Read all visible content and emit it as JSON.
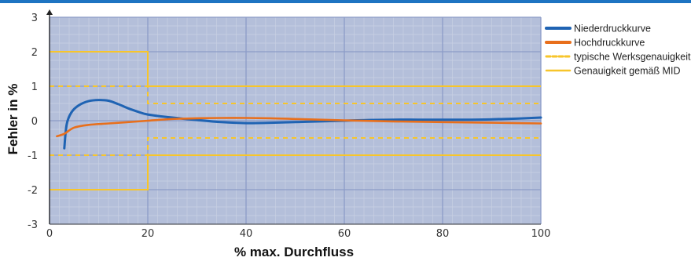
{
  "chart_data": {
    "type": "line",
    "xlabel": "% max. Durchfluss",
    "ylabel": "Fehler in %",
    "xlim": [
      0,
      100
    ],
    "ylim": [
      -3,
      3
    ],
    "x_ticks": [
      0,
      20,
      40,
      60,
      80,
      100
    ],
    "y_ticks": [
      3,
      2,
      1,
      0,
      -1,
      -2,
      -3
    ],
    "grid": true,
    "minor_grid": true,
    "legend_placement": "right",
    "colors": {
      "plot_background": "#b4bfda",
      "grid_major": "#8c9cc8",
      "grid_minor": "#c9d0e3",
      "niederdruck": "#1f63b3",
      "hochdruck": "#e86f1c",
      "werks": "#f7c52b",
      "mid": "#f7c52b"
    },
    "series": [
      {
        "name": "Niederdruckkurve",
        "style": "solid",
        "points": [
          [
            3,
            -0.8
          ],
          [
            3.5,
            -0.1
          ],
          [
            4.5,
            0.25
          ],
          [
            6,
            0.45
          ],
          [
            8,
            0.57
          ],
          [
            10,
            0.6
          ],
          [
            12,
            0.58
          ],
          [
            14,
            0.48
          ],
          [
            16,
            0.36
          ],
          [
            18,
            0.26
          ],
          [
            20,
            0.18
          ],
          [
            25,
            0.09
          ],
          [
            30,
            0.02
          ],
          [
            35,
            -0.04
          ],
          [
            40,
            -0.07
          ],
          [
            45,
            -0.06
          ],
          [
            50,
            -0.04
          ],
          [
            55,
            -0.02
          ],
          [
            60,
            0.0
          ],
          [
            65,
            0.02
          ],
          [
            70,
            0.03
          ],
          [
            75,
            0.03
          ],
          [
            80,
            0.03
          ],
          [
            85,
            0.03
          ],
          [
            90,
            0.04
          ],
          [
            95,
            0.06
          ],
          [
            100,
            0.09
          ]
        ]
      },
      {
        "name": "Hochdruckkurve",
        "style": "solid",
        "points": [
          [
            1.5,
            -0.45
          ],
          [
            3,
            -0.38
          ],
          [
            5,
            -0.2
          ],
          [
            8,
            -0.12
          ],
          [
            12,
            -0.08
          ],
          [
            16,
            -0.04
          ],
          [
            20,
            0.0
          ],
          [
            25,
            0.05
          ],
          [
            30,
            0.07
          ],
          [
            35,
            0.08
          ],
          [
            40,
            0.08
          ],
          [
            45,
            0.07
          ],
          [
            50,
            0.05
          ],
          [
            55,
            0.03
          ],
          [
            60,
            0.01
          ],
          [
            70,
            -0.02
          ],
          [
            80,
            -0.04
          ],
          [
            90,
            -0.06
          ],
          [
            100,
            -0.08
          ]
        ]
      },
      {
        "name": "typische Werksgenauigkeit",
        "style": "dashed",
        "upper": [
          [
            0,
            1
          ],
          [
            20,
            1
          ],
          [
            20,
            0.5
          ],
          [
            100,
            0.5
          ]
        ],
        "lower": [
          [
            0,
            -1
          ],
          [
            20,
            -1
          ],
          [
            20,
            -0.5
          ],
          [
            100,
            -0.5
          ]
        ]
      },
      {
        "name": "Genauigkeit gemäß MID",
        "style": "solid",
        "upper": [
          [
            0,
            2
          ],
          [
            20,
            2
          ],
          [
            20,
            1
          ],
          [
            100,
            1
          ]
        ],
        "lower": [
          [
            0,
            -2
          ],
          [
            20,
            -2
          ],
          [
            20,
            -1
          ],
          [
            100,
            -1
          ]
        ]
      }
    ]
  }
}
